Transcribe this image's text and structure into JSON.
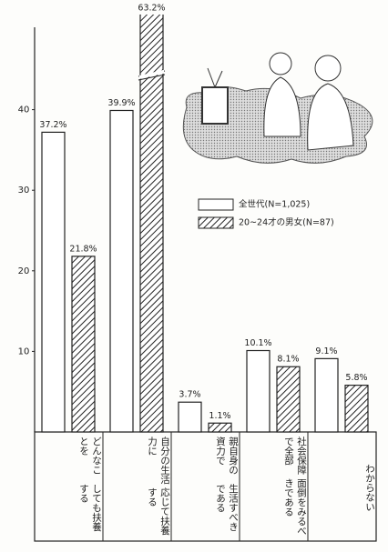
{
  "chart_data": {
    "type": "bar",
    "categories": [
      [
        "どんなことを",
        "しても扶養する"
      ],
      [
        "自分の生活力に",
        "応じて扶養する"
      ],
      [
        "親自身の資力で",
        "生活すべきである"
      ],
      [
        "社会保障で全部",
        "面倒をみるべきである"
      ],
      [
        "わからない"
      ]
    ],
    "series": [
      {
        "name": "全世代(N=1,025)",
        "color": "#ffffff",
        "hatch": false,
        "values": [
          37.2,
          39.9,
          3.7,
          10.1,
          9.1
        ],
        "value_labels": [
          "37.2%",
          "39.9%",
          "3.7%",
          "10.1%",
          "9.1%"
        ]
      },
      {
        "name": "20~24才の男女(N=87)",
        "color": "#ffffff",
        "hatch": true,
        "values": [
          21.8,
          63.2,
          1.1,
          8.1,
          5.8
        ],
        "value_labels": [
          "21.8%",
          "63.2%",
          "1.1%",
          "8.1%",
          "5.8%"
        ]
      }
    ],
    "ylim": [
      0,
      50
    ],
    "yticks": [
      10,
      20,
      30,
      40
    ]
  }
}
